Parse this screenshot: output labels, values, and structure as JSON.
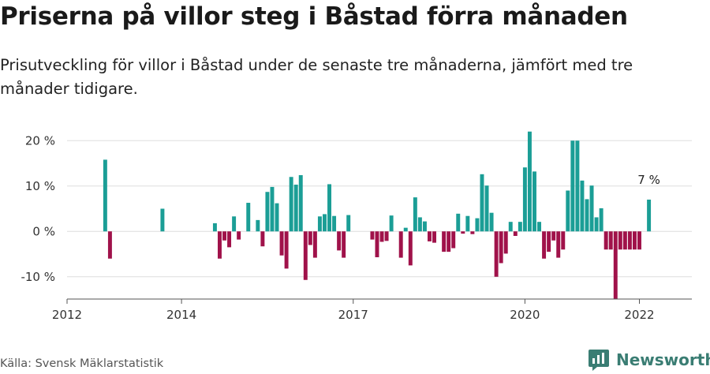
{
  "title": "Priserna på villor steg i Båstad förra månaden",
  "subtitle": "Prisutveckling för villor i Båstad under de senaste tre månaderna, jämfört med tre månader tidigare.",
  "source": "Källa: Svensk Mäklarstatistik",
  "brand": {
    "name": "Newsworthy",
    "logo_icon": "newsworthy-logo-icon"
  },
  "colors": {
    "positive": "#1b9e96",
    "negative": "#a0124a",
    "grid": "#dddddd",
    "axis": "#555555"
  },
  "chart_data": {
    "type": "bar",
    "title": "Priserna på villor steg i Båstad förra månaden",
    "ylim": [
      -17,
      23
    ],
    "yticks": [
      20,
      10,
      0,
      -10
    ],
    "ytick_labels": [
      "20 %",
      "10 %",
      "0 %",
      "-10 %"
    ],
    "xlim": [
      "2012-01",
      "2022-12"
    ],
    "xticks": [
      "2012-01",
      "2014-01",
      "2017-01",
      "2020-01",
      "2022-01"
    ],
    "xtick_labels": [
      "2012",
      "2014",
      "2017",
      "2020",
      "2022"
    ],
    "grid": true,
    "annotation": {
      "x": "2022-03",
      "y": 7,
      "label": "7 %"
    },
    "series": [
      {
        "x": [
          "2012-09",
          "2012-10",
          "2013-09",
          "2014-08",
          "2014-09",
          "2014-10",
          "2014-11",
          "2014-12",
          "2015-01",
          "2015-03",
          "2015-05",
          "2015-06",
          "2015-07",
          "2015-08",
          "2015-09",
          "2015-10",
          "2015-11",
          "2015-12",
          "2016-01",
          "2016-02",
          "2016-03",
          "2016-04",
          "2016-05",
          "2016-06",
          "2016-07",
          "2016-08",
          "2016-09",
          "2016-10",
          "2016-11",
          "2016-12",
          "2017-05",
          "2017-06",
          "2017-07",
          "2017-08",
          "2017-09",
          "2017-11",
          "2017-12",
          "2018-01",
          "2018-02",
          "2018-03",
          "2018-04",
          "2018-05",
          "2018-06",
          "2018-08",
          "2018-09",
          "2018-10",
          "2018-11",
          "2018-12",
          "2019-01",
          "2019-02",
          "2019-03",
          "2019-04",
          "2019-05",
          "2019-06",
          "2019-07",
          "2019-08",
          "2019-09",
          "2019-10",
          "2019-11",
          "2019-12",
          "2020-01",
          "2020-02",
          "2020-03",
          "2020-04",
          "2020-05",
          "2020-06",
          "2020-07",
          "2020-08",
          "2020-09",
          "2020-10",
          "2020-11",
          "2020-12",
          "2021-01",
          "2021-02",
          "2021-03",
          "2021-04",
          "2021-05",
          "2021-06",
          "2021-07",
          "2021-08",
          "2021-09",
          "2021-10",
          "2021-11",
          "2021-12",
          "2022-01",
          "2022-03"
        ],
        "values": [
          15.8,
          -6,
          5,
          1.8,
          -6,
          -2,
          -3.5,
          3.3,
          -1.8,
          6.3,
          2.5,
          -3.3,
          8.7,
          9.8,
          6.2,
          -5.3,
          -8.2,
          12,
          10.3,
          12.4,
          -10.7,
          -3,
          -5.8,
          3.3,
          3.8,
          10.4,
          3.4,
          -4.2,
          -5.8,
          3.6,
          -1.8,
          -5.7,
          -2.3,
          -2.1,
          3.5,
          -5.8,
          0.8,
          -7.5,
          7.5,
          3.1,
          2.2,
          -2.2,
          -2.5,
          -4.5,
          -4.5,
          -3.7,
          3.9,
          -0.5,
          3.4,
          -0.6,
          2.9,
          12.6,
          10.1,
          4.1,
          -10,
          -7,
          -4.9,
          2.1,
          -1,
          2.1,
          14.1,
          22,
          13.2,
          2.1,
          -6,
          -4.5,
          -2,
          -5.8,
          -4,
          9,
          20,
          20,
          11.2,
          7.1,
          10.1,
          3.1,
          5.1,
          -4,
          -4,
          -15,
          -4,
          -4,
          -4,
          -4,
          -4,
          7
        ]
      }
    ]
  }
}
